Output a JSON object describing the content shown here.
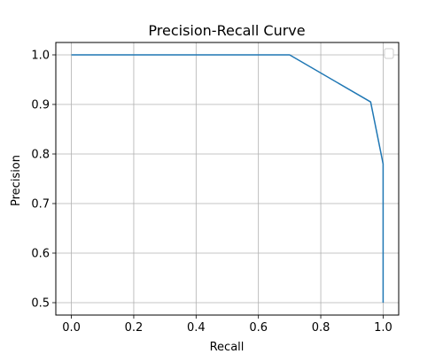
{
  "chart_data": {
    "type": "line",
    "title": "Precision-Recall Curve",
    "xlabel": "Recall",
    "ylabel": "Precision",
    "xlim": [
      -0.05,
      1.05
    ],
    "ylim": [
      0.475,
      1.025
    ],
    "xticks": [
      0.0,
      0.2,
      0.4,
      0.6,
      0.8,
      1.0
    ],
    "yticks": [
      0.5,
      0.6,
      0.7,
      0.8,
      0.9,
      1.0
    ],
    "xtick_labels": [
      "0.0",
      "0.2",
      "0.4",
      "0.6",
      "0.8",
      "1.0"
    ],
    "ytick_labels": [
      "0.5",
      "0.6",
      "0.7",
      "0.8",
      "0.9",
      "1.0"
    ],
    "grid": true,
    "legend": {
      "placement": "top-right",
      "entries": []
    },
    "colors": {
      "line": "#1f77b4",
      "grid": "#b0b0b0",
      "axes": "#000000"
    },
    "series": [
      {
        "x": [
          0.0,
          0.7,
          0.96,
          1.0,
          1.0
        ],
        "y": [
          1.0,
          1.0,
          0.905,
          0.78,
          0.5
        ]
      }
    ]
  }
}
